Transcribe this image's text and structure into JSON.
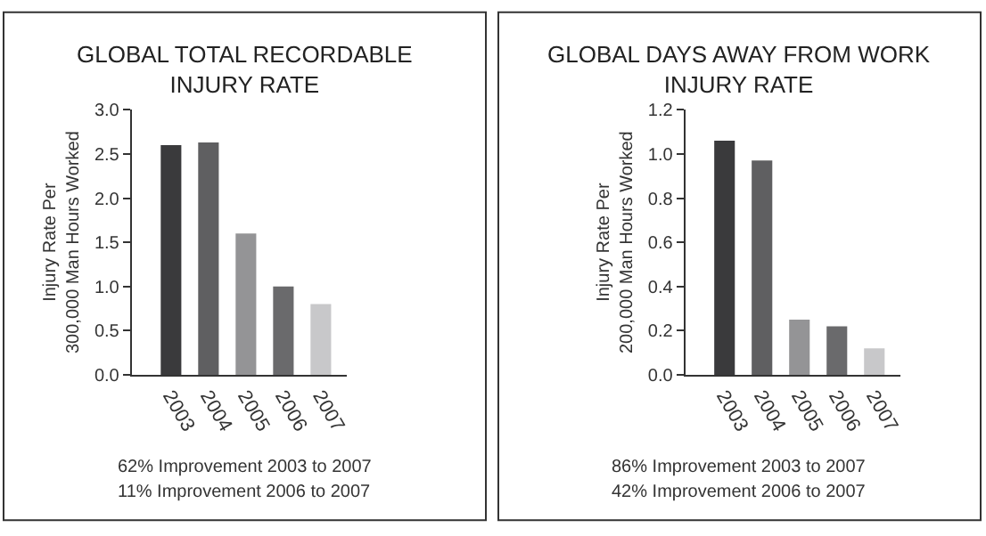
{
  "chart_data": [
    {
      "type": "bar",
      "title": "GLOBAL TOTAL RECORDABLE\nINJURY RATE",
      "ylabel": "Injury Rate Per\n300,000 Man Hours Worked",
      "categories": [
        "2003",
        "2004",
        "2005",
        "2006",
        "2007"
      ],
      "values": [
        2.6,
        2.63,
        1.6,
        1.0,
        0.8
      ],
      "colors": [
        "#3a3a3c",
        "#5f5f61",
        "#949496",
        "#6a6a6c",
        "#c8c8ca"
      ],
      "ylim": [
        0,
        3.0
      ],
      "yticks": [
        {
          "value": 0,
          "label": "0.0"
        },
        0.5,
        {
          "value": 1,
          "label": "1.0"
        },
        1.5,
        {
          "value": 2,
          "label": "2.0"
        },
        2.5,
        {
          "value": 3,
          "label": "3.0"
        }
      ],
      "annotations": [
        "62% Improvement 2003 to 2007",
        "11% Improvement 2006 to 2007"
      ]
    },
    {
      "type": "bar",
      "title": "GLOBAL DAYS AWAY FROM WORK\nINJURY RATE",
      "ylabel": "Injury Rate Per\n200,000 Man Hours Worked",
      "categories": [
        "2003",
        "2004",
        "2005",
        "2006",
        "2007"
      ],
      "values": [
        1.06,
        0.97,
        0.25,
        0.22,
        0.12
      ],
      "colors": [
        "#3a3a3c",
        "#5f5f61",
        "#949496",
        "#6a6a6c",
        "#c8c8ca"
      ],
      "ylim": [
        0,
        1.2
      ],
      "yticks": [
        {
          "value": 0,
          "label": "0.0"
        },
        0.2,
        0.4,
        0.6,
        0.8,
        {
          "value": 1,
          "label": "1.0"
        },
        1.2
      ],
      "annotations": [
        "86% Improvement 2003 to 2007",
        "42% Improvement 2006 to 2007"
      ]
    }
  ]
}
